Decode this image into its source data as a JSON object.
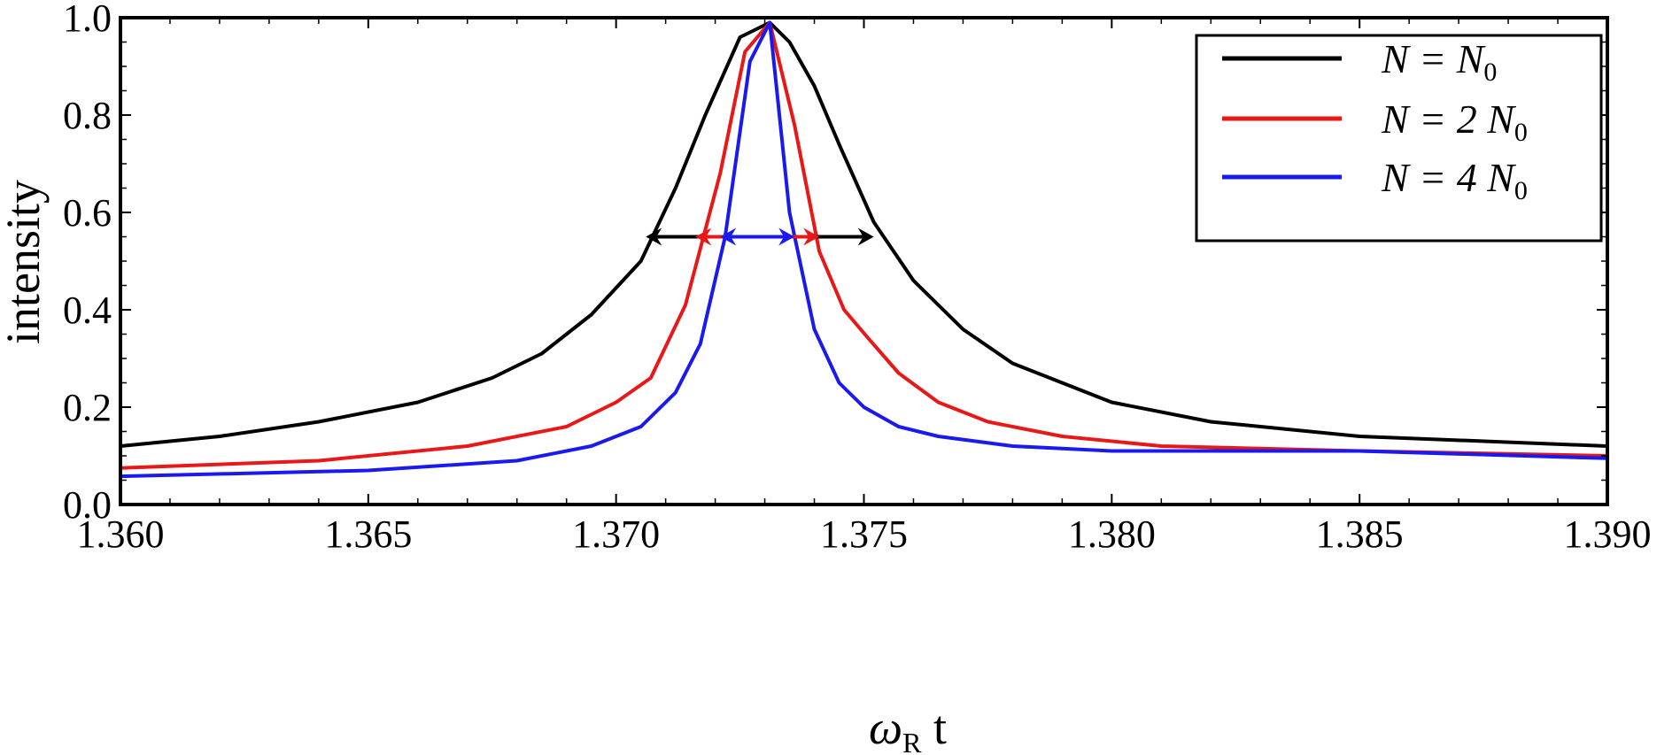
{
  "chart_data": {
    "type": "line",
    "title": "",
    "xlabel": "ω_R t",
    "xlabel_main": "ω",
    "xlabel_sub": "R",
    "xlabel_tail": " t",
    "ylabel": "intensity",
    "xlim": [
      1.36,
      1.39
    ],
    "ylim": [
      0.0,
      1.0
    ],
    "xticks": [
      "1.360",
      "1.365",
      "1.370",
      "1.375",
      "1.380",
      "1.385",
      "1.390"
    ],
    "xtick_values": [
      1.36,
      1.365,
      1.37,
      1.375,
      1.38,
      1.385,
      1.39
    ],
    "yticks": [
      "0.0",
      "0.2",
      "0.4",
      "0.6",
      "0.8",
      "1.0"
    ],
    "ytick_values": [
      0.0,
      0.2,
      0.4,
      0.6,
      0.8,
      1.0
    ],
    "grid": false,
    "legend_position": "top-right",
    "series": [
      {
        "name": "N = N0",
        "label_main": "N = N",
        "label_sub": "0",
        "color": "#000000",
        "x": [
          1.36,
          1.362,
          1.364,
          1.366,
          1.3675,
          1.3685,
          1.3695,
          1.3705,
          1.3712,
          1.3718,
          1.3725,
          1.3731,
          1.3735,
          1.374,
          1.3745,
          1.3752,
          1.376,
          1.377,
          1.378,
          1.38,
          1.382,
          1.385,
          1.39
        ],
        "y": [
          0.12,
          0.14,
          0.17,
          0.21,
          0.26,
          0.31,
          0.39,
          0.5,
          0.65,
          0.8,
          0.96,
          0.99,
          0.95,
          0.86,
          0.74,
          0.58,
          0.46,
          0.36,
          0.29,
          0.21,
          0.17,
          0.14,
          0.12
        ]
      },
      {
        "name": "N = 2 N0",
        "label_main": "N = 2 N",
        "label_sub": "0",
        "color": "#e81818",
        "x": [
          1.36,
          1.364,
          1.367,
          1.369,
          1.37,
          1.3707,
          1.3714,
          1.3721,
          1.3726,
          1.3731,
          1.3736,
          1.3741,
          1.3746,
          1.3751,
          1.3757,
          1.3765,
          1.3775,
          1.379,
          1.381,
          1.385,
          1.39
        ],
        "y": [
          0.075,
          0.09,
          0.12,
          0.16,
          0.21,
          0.26,
          0.41,
          0.68,
          0.93,
          0.99,
          0.78,
          0.52,
          0.4,
          0.34,
          0.27,
          0.21,
          0.17,
          0.14,
          0.12,
          0.11,
          0.1
        ]
      },
      {
        "name": "N = 4 N0",
        "label_main": "N = 4 N",
        "label_sub": "0",
        "color": "#1a1aee",
        "x": [
          1.36,
          1.365,
          1.368,
          1.3695,
          1.3705,
          1.3712,
          1.3717,
          1.3722,
          1.3727,
          1.3731,
          1.3735,
          1.374,
          1.3745,
          1.375,
          1.3757,
          1.3765,
          1.378,
          1.38,
          1.385,
          1.39
        ],
        "y": [
          0.058,
          0.07,
          0.09,
          0.12,
          0.16,
          0.23,
          0.33,
          0.55,
          0.91,
          0.99,
          0.6,
          0.36,
          0.25,
          0.2,
          0.16,
          0.14,
          0.12,
          0.11,
          0.11,
          0.095
        ]
      }
    ],
    "fwhm_markers": [
      {
        "series": "N = N0",
        "color": "#000000",
        "x_left": 1.3706,
        "x_right": 1.3752,
        "y": 0.55
      },
      {
        "series": "N = 2 N0",
        "color": "#e81818",
        "x_left": 1.3716,
        "x_right": 1.3741,
        "y": 0.55
      },
      {
        "series": "N = 4 N0",
        "color": "#1a1aee",
        "x_left": 1.3721,
        "x_right": 1.3736,
        "y": 0.55
      }
    ]
  }
}
